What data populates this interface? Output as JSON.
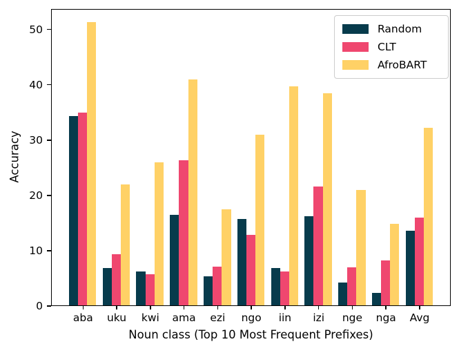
{
  "chart_data": {
    "type": "bar",
    "title": "",
    "xlabel": "Noun class (Top 10 Most Frequent Prefixes)",
    "ylabel": "Accuracy",
    "categories": [
      "aba",
      "uku",
      "kwi",
      "ama",
      "ezi",
      "ngo",
      "iin",
      "izi",
      "nge",
      "nga",
      "Avg"
    ],
    "series": [
      {
        "name": "Random",
        "color": "#073B4C",
        "values": [
          34.2,
          6.7,
          6.1,
          16.3,
          5.3,
          15.6,
          6.7,
          16.1,
          4.1,
          2.2,
          13.5
        ]
      },
      {
        "name": "CLT",
        "color": "#EF476F",
        "values": [
          34.8,
          9.3,
          5.6,
          26.2,
          7.0,
          12.8,
          6.1,
          21.5,
          6.9,
          8.1,
          15.8
        ]
      },
      {
        "name": "AfroBART",
        "color": "#FFD166",
        "values": [
          51.2,
          21.9,
          25.9,
          40.9,
          17.4,
          30.8,
          39.6,
          38.3,
          20.8,
          14.8,
          32.1
        ]
      }
    ],
    "ylim": [
      0,
      53.7
    ],
    "yticks": [
      0,
      10,
      20,
      30,
      40,
      50
    ],
    "grid": false,
    "legend_position": "upper right",
    "axis_color": "#000000",
    "background_color": "#ffffff"
  }
}
